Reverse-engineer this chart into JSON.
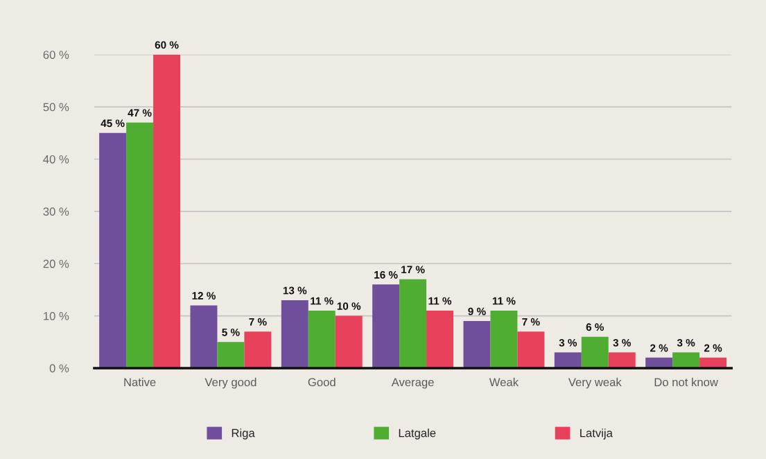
{
  "chart_data": {
    "type": "bar",
    "categories": [
      "Native",
      "Very good",
      "Good",
      "Average",
      "Weak",
      "Very weak",
      "Do not know"
    ],
    "series": [
      {
        "name": "Riga",
        "color": "#6f4e9b",
        "values": [
          45,
          12,
          13,
          16,
          9,
          3,
          2
        ],
        "value_labels": [
          "45 %",
          "12 %",
          "13 %",
          "16 %",
          "9 %",
          "3 %",
          "2 %"
        ]
      },
      {
        "name": "Latgale",
        "color": "#4fad32",
        "values": [
          47,
          5,
          11,
          17,
          11,
          6,
          3
        ],
        "value_labels": [
          "47 %",
          "5 %",
          "11 %",
          "17 %",
          "11 %",
          "6 %",
          "3 %"
        ]
      },
      {
        "name": "Latvija",
        "color": "#e8415c",
        "values": [
          60,
          7,
          10,
          11,
          7,
          3,
          2
        ],
        "value_labels": [
          "60 %",
          "7 %",
          "10 %",
          "11 %",
          "7 %",
          "3 %",
          "2 %"
        ]
      }
    ],
    "ylim": [
      0,
      60
    ],
    "yticks": [
      {
        "value": 0,
        "label": "0 %"
      },
      {
        "value": 10,
        "label": "10 %"
      },
      {
        "value": 20,
        "label": "20 %"
      },
      {
        "value": 30,
        "label": "30 %"
      },
      {
        "value": 40,
        "label": "40 %"
      },
      {
        "value": 50,
        "label": "50 %"
      },
      {
        "value": 60,
        "label": "60 %"
      }
    ],
    "grid": "y",
    "legend": "bottom"
  }
}
